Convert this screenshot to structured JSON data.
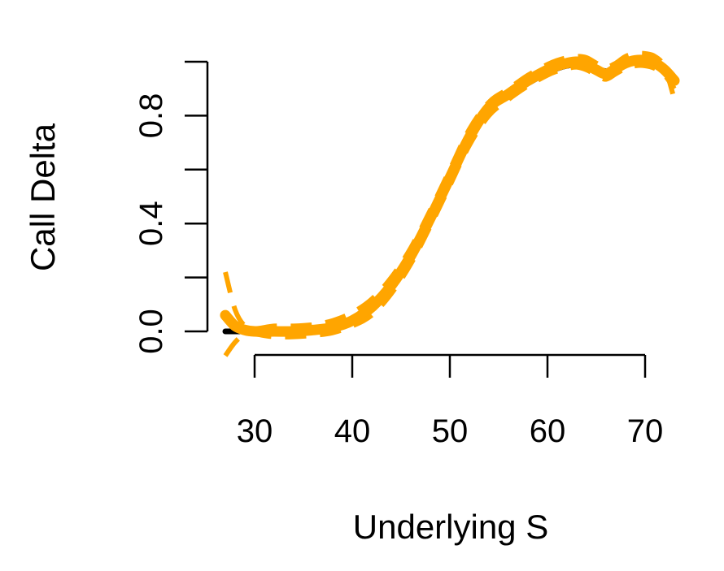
{
  "chart_data": {
    "type": "line",
    "title": "",
    "xlabel": "Underlying S",
    "ylabel": "Call Delta",
    "xlim": [
      27,
      73
    ],
    "ylim": [
      0,
      1
    ],
    "x_ticks": [
      30,
      40,
      50,
      60,
      70
    ],
    "x_tick_labels": [
      "30",
      "40",
      "50",
      "60",
      "70"
    ],
    "y_ticks": [
      0,
      0.2,
      0.4,
      0.6,
      0.8,
      1.0
    ],
    "y_tick_labels": [
      "0.0",
      "",
      "0.4",
      "",
      "0.8",
      ""
    ],
    "grid": false,
    "legend": "none",
    "series": [
      {
        "style": "solid",
        "color": "#000000",
        "x": [
          27,
          28,
          29,
          30,
          32,
          34,
          36,
          38,
          40,
          42,
          44,
          46,
          48,
          50,
          52,
          54,
          56,
          58,
          60,
          61,
          62,
          63,
          64,
          65,
          66,
          67,
          68,
          69,
          70,
          71,
          72
        ],
        "y": [
          0.0,
          0.0,
          0.0,
          0.0,
          0.002,
          0.004,
          0.008,
          0.016,
          0.04,
          0.09,
          0.17,
          0.28,
          0.42,
          0.57,
          0.72,
          0.83,
          0.88,
          0.92,
          0.96,
          0.975,
          0.985,
          0.99,
          0.985,
          0.975,
          0.965,
          0.975,
          0.99,
          1.0,
          1.0,
          0.99,
          0.97
        ]
      },
      {
        "style": "solid-thick",
        "color": "#FFA500",
        "x": [
          27,
          28,
          29,
          30,
          32,
          34,
          36,
          38,
          40,
          42,
          44,
          46,
          48,
          50,
          52,
          54,
          56,
          58,
          60,
          61,
          62,
          63,
          64,
          65,
          66,
          67,
          68,
          69,
          70,
          71,
          72,
          73
        ],
        "y": [
          0.06,
          0.02,
          0.005,
          0.0,
          0.0,
          0.0,
          0.005,
          0.015,
          0.04,
          0.09,
          0.17,
          0.28,
          0.42,
          0.57,
          0.72,
          0.83,
          0.88,
          0.93,
          0.97,
          0.985,
          0.995,
          1.0,
          0.99,
          0.97,
          0.955,
          0.975,
          0.995,
          1.005,
          1.005,
          0.995,
          0.97,
          0.93
        ]
      },
      {
        "style": "dashed",
        "color": "#FFA500",
        "x": [
          27,
          28,
          29,
          30,
          32,
          34,
          36,
          38,
          40,
          42,
          44,
          46,
          48,
          50,
          52,
          54,
          56,
          58,
          60,
          61,
          62,
          63,
          64,
          65,
          66,
          67,
          68,
          69,
          70,
          71,
          72,
          73
        ],
        "y": [
          0.22,
          0.08,
          0.02,
          0.01,
          0.02,
          0.02,
          0.025,
          0.04,
          0.07,
          0.12,
          0.2,
          0.31,
          0.45,
          0.6,
          0.75,
          0.85,
          0.9,
          0.95,
          0.99,
          1.005,
          1.015,
          1.02,
          1.015,
          0.995,
          0.98,
          0.995,
          1.02,
          1.03,
          1.03,
          1.02,
          0.98,
          0.86
        ]
      },
      {
        "style": "dashed",
        "color": "#FFA500",
        "x": [
          27,
          28,
          29,
          30,
          32,
          34,
          36,
          38,
          40,
          42,
          44,
          46,
          48,
          50,
          52,
          54,
          56,
          58,
          60,
          61,
          62,
          63,
          64,
          65,
          66,
          67,
          68,
          69,
          70,
          71,
          72,
          73
        ],
        "y": [
          -0.09,
          -0.04,
          -0.01,
          -0.01,
          -0.02,
          -0.02,
          -0.015,
          -0.005,
          0.02,
          0.06,
          0.14,
          0.25,
          0.39,
          0.54,
          0.69,
          0.8,
          0.86,
          0.91,
          0.95,
          0.965,
          0.975,
          0.98,
          0.97,
          0.95,
          0.935,
          0.955,
          0.975,
          0.985,
          0.985,
          0.975,
          0.95,
          0.9
        ]
      }
    ]
  }
}
